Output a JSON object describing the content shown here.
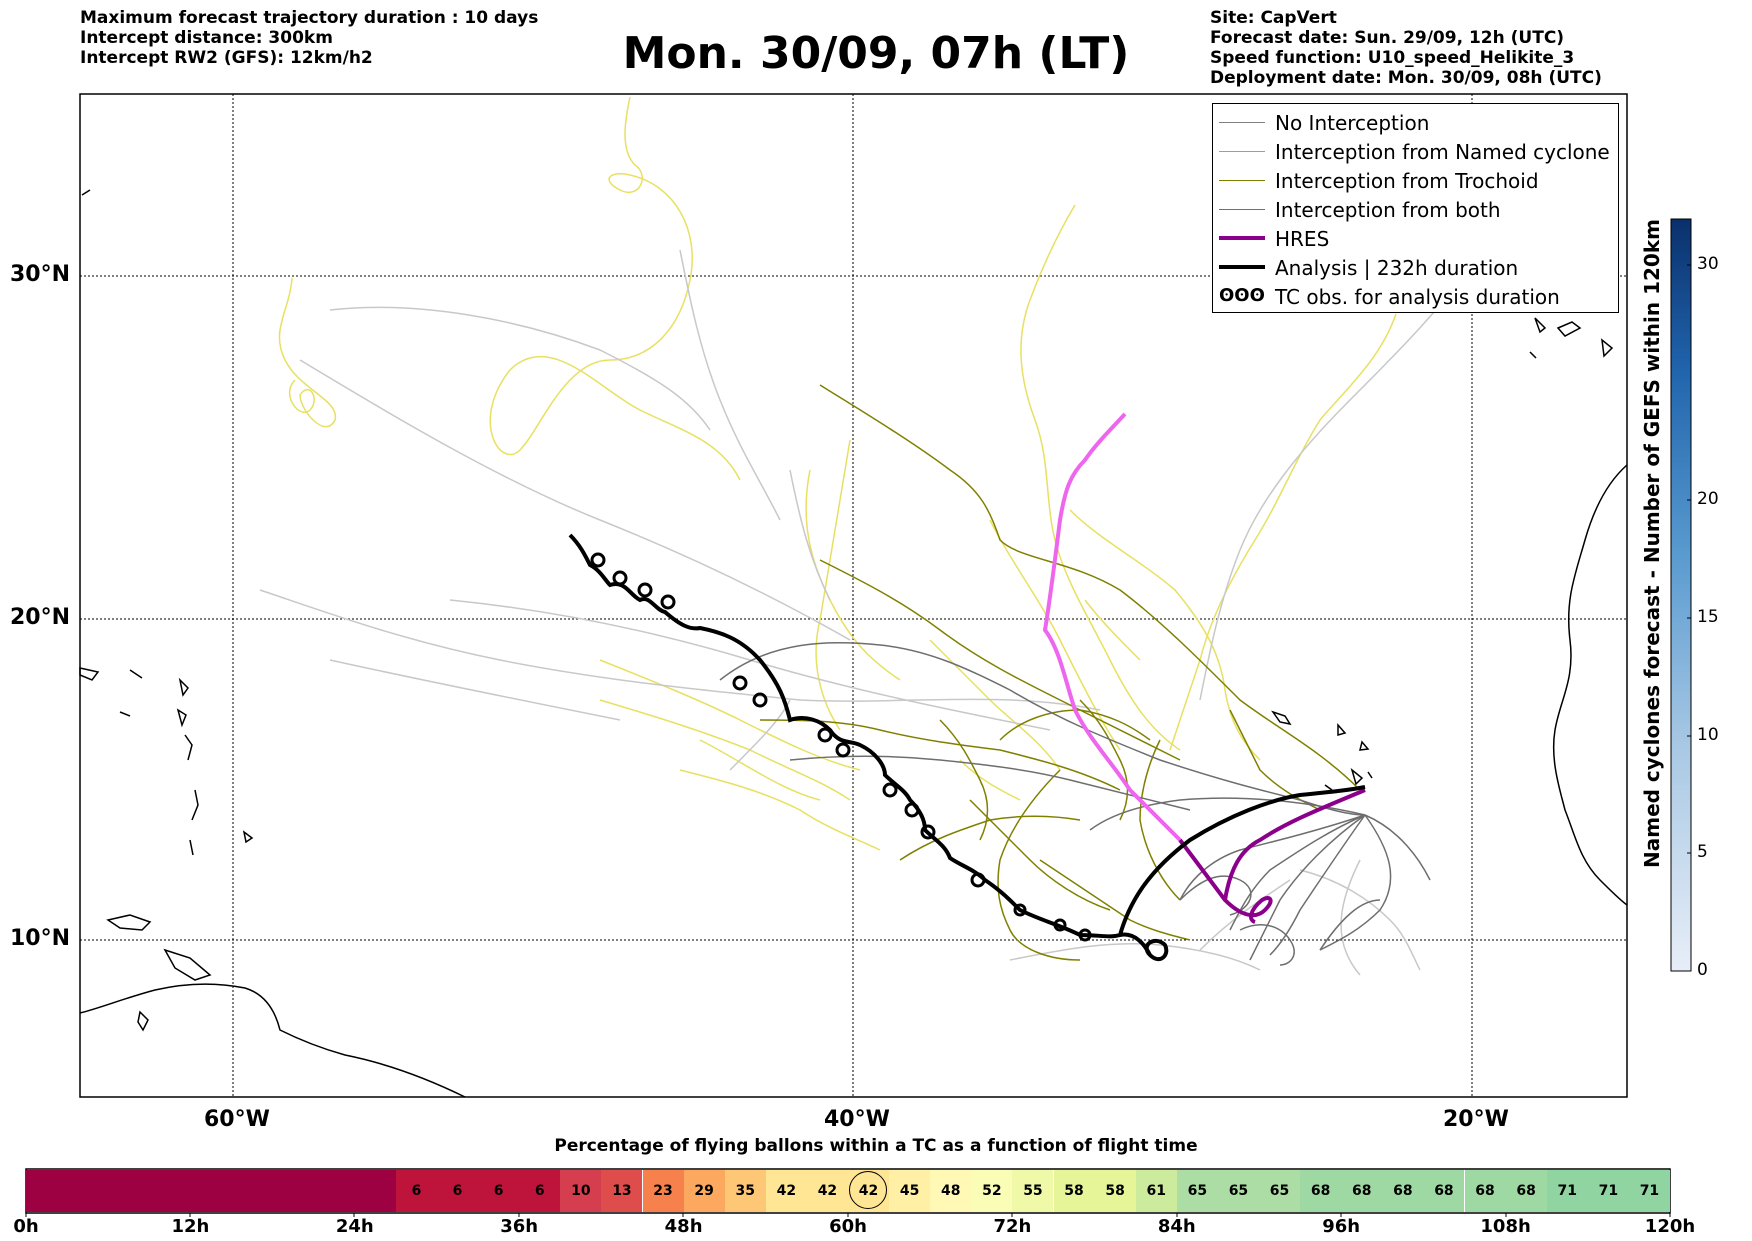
{
  "header": {
    "left": [
      "Maximum forecast trajectory duration : 10 days",
      "Intercept distance: 300km",
      "Intercept RW2 (GFS):  12km/h2"
    ],
    "title": "Mon. 30/09, 07h (LT)",
    "right": [
      "Site: CapVert",
      "Forecast date: Sun. 29/09, 12h (UTC)",
      "Speed function: U10_speed_Helikite_3",
      "Deployment date: Mon. 30/09, 08h (UTC)"
    ]
  },
  "map": {
    "lat_labels": [
      "30°N",
      "20°N",
      "10°N"
    ],
    "lon_labels": [
      "60°W",
      "40°W",
      "20°W"
    ],
    "colors": {
      "no_interception": "#6e6e6e",
      "named_cyclone": "#ff7f3f",
      "trochoid": "#808000",
      "both": "#2ca02c",
      "hres": "#8b008b",
      "hres_forecast": "#ee66ee",
      "analysis": "#000000",
      "light_member": "#e8e060"
    }
  },
  "legend": [
    {
      "label": "No Interception",
      "color": "#808080",
      "width": 1.5
    },
    {
      "label": "Interception from Named cyclone",
      "color": "#ff7f3f",
      "width": 1.5
    },
    {
      "label": "Interception from Trochoid",
      "color": "#808000",
      "width": 1.5
    },
    {
      "label": "Interception from both",
      "color": "#2ca02c",
      "width": 1.5
    },
    {
      "label": "HRES",
      "color": "#8b008b",
      "width": 4
    },
    {
      "label": "Analysis | 232h duration",
      "color": "#000000",
      "width": 4
    },
    {
      "label": "TC obs. for analysis duration",
      "color": "#000000",
      "width": 0,
      "icon": "ʘʘʘ"
    }
  ],
  "colorbar": {
    "title": "Named cyclones forecast - Number of GEFS within 120km",
    "ticks": [
      "0",
      "5",
      "10",
      "15",
      "20",
      "30"
    ]
  },
  "time_bar": {
    "title": "Percentage of flying ballons within a TC as a function of flight time",
    "hour_labels": [
      "0h",
      "12h",
      "24h",
      "36h",
      "48h",
      "60h",
      "72h",
      "84h",
      "96h",
      "108h",
      "120h"
    ],
    "percentages": [
      6,
      6,
      6,
      6,
      10,
      13,
      23,
      29,
      35,
      42,
      42,
      42,
      45,
      48,
      52,
      55,
      58,
      58,
      61,
      65,
      65,
      65,
      68,
      68,
      68,
      68,
      68,
      68,
      71,
      71,
      71
    ],
    "highlighted_value": 42
  }
}
